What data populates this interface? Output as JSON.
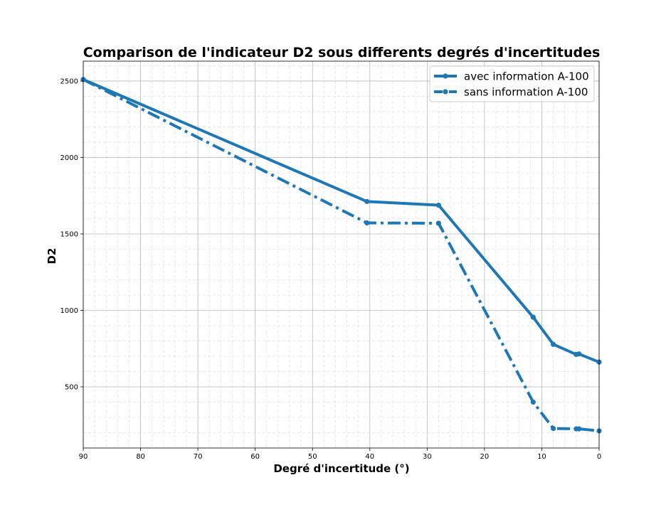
{
  "chart_data": {
    "type": "line",
    "title": "Comparison de l'indicateur D2 sous differents degrés d'incertitudes",
    "xlabel": "Degré d'incertitude (°)",
    "ylabel": "D2",
    "xlim": [
      90,
      0
    ],
    "x_reversed": true,
    "ylim": [
      100,
      2630
    ],
    "xticks": [
      90,
      80,
      70,
      60,
      50,
      40,
      30,
      20,
      10,
      0
    ],
    "yticks": [
      500,
      1000,
      1500,
      2000,
      2500
    ],
    "grid": true,
    "minor_grid": true,
    "legend_position": "top-right",
    "color": "#1f77b4",
    "series": [
      {
        "name": "avec information A-100",
        "style": "solid",
        "x": [
          90,
          40.5,
          28,
          11.5,
          8,
          4,
          3.5,
          0
        ],
        "y": [
          2510,
          1712,
          1688,
          955,
          778,
          712,
          715,
          662
        ]
      },
      {
        "name": "sans information A-100",
        "style": "dashdot",
        "x": [
          90,
          40.5,
          28,
          11.5,
          8,
          4,
          3.5,
          0
        ],
        "y": [
          2510,
          1572,
          1570,
          400,
          228,
          225,
          225,
          212
        ]
      }
    ]
  }
}
